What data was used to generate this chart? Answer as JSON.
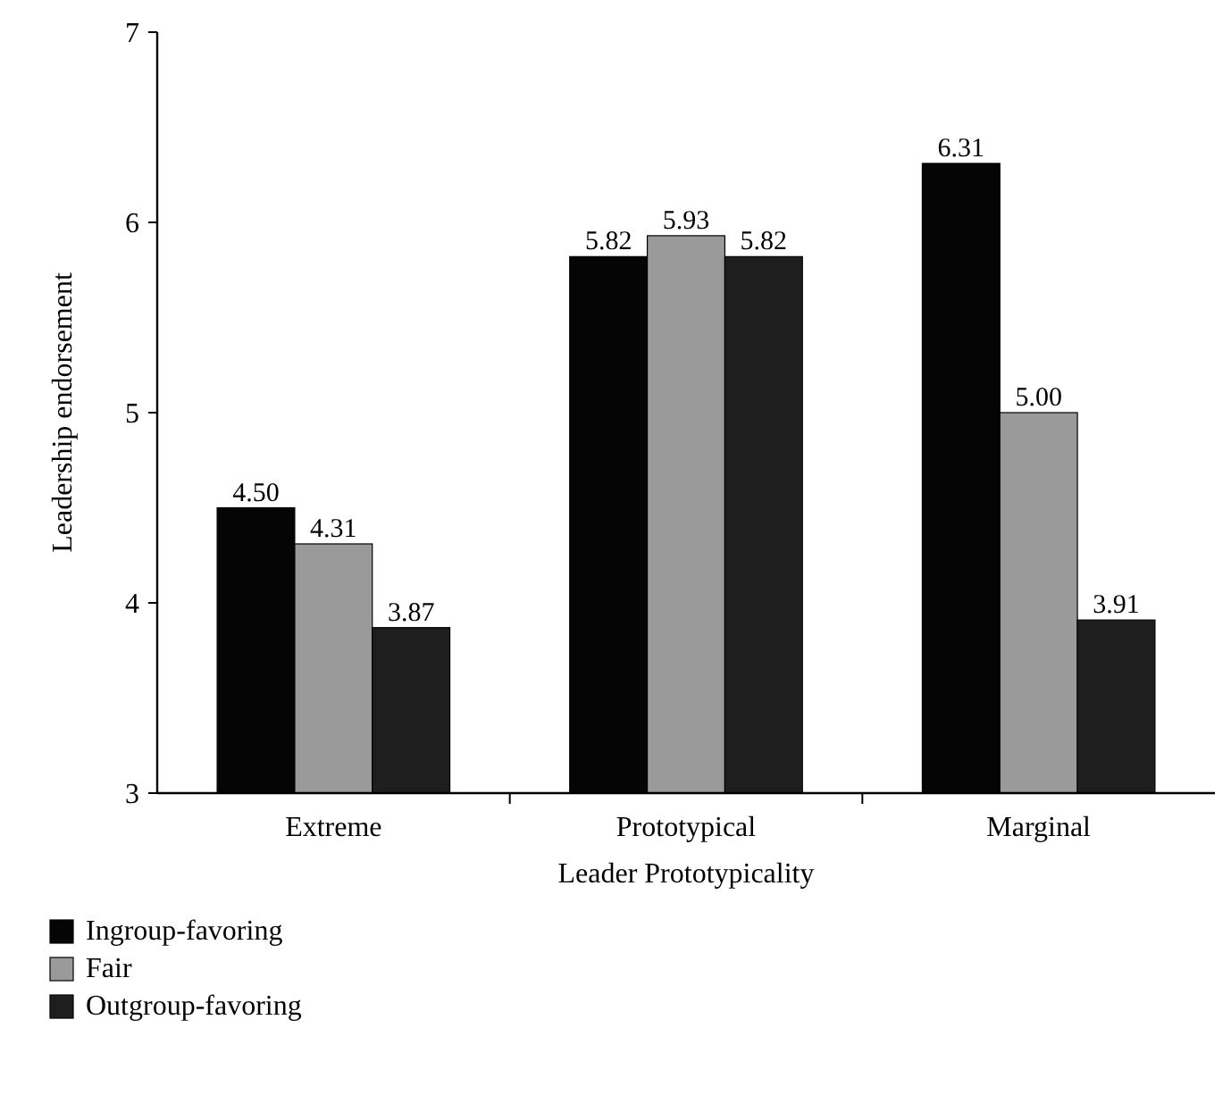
{
  "chart_data": {
    "type": "bar",
    "xlabel": "Leader Prototypicality",
    "ylabel": "Leadership endorsement",
    "categories": [
      "Extreme",
      "Prototypical",
      "Marginal"
    ],
    "series": [
      {
        "name": "Ingroup-favoring",
        "color": "#050505",
        "values": [
          4.5,
          5.82,
          6.31
        ]
      },
      {
        "name": "Fair",
        "color": "#9a9a9a",
        "values": [
          4.31,
          5.93,
          5.0
        ]
      },
      {
        "name": "Outgroup-favoring",
        "color": "#1e1e1e",
        "values": [
          3.87,
          5.82,
          3.91
        ]
      }
    ],
    "value_labels": [
      [
        "4.50",
        "5.82",
        "6.31"
      ],
      [
        "4.31",
        "5.93",
        "5.00"
      ],
      [
        "3.87",
        "5.82",
        "3.91"
      ]
    ],
    "ylim": [
      3,
      7
    ],
    "yticks": [
      3,
      4,
      5,
      6,
      7
    ],
    "legend": "bottom left",
    "grid": false
  }
}
